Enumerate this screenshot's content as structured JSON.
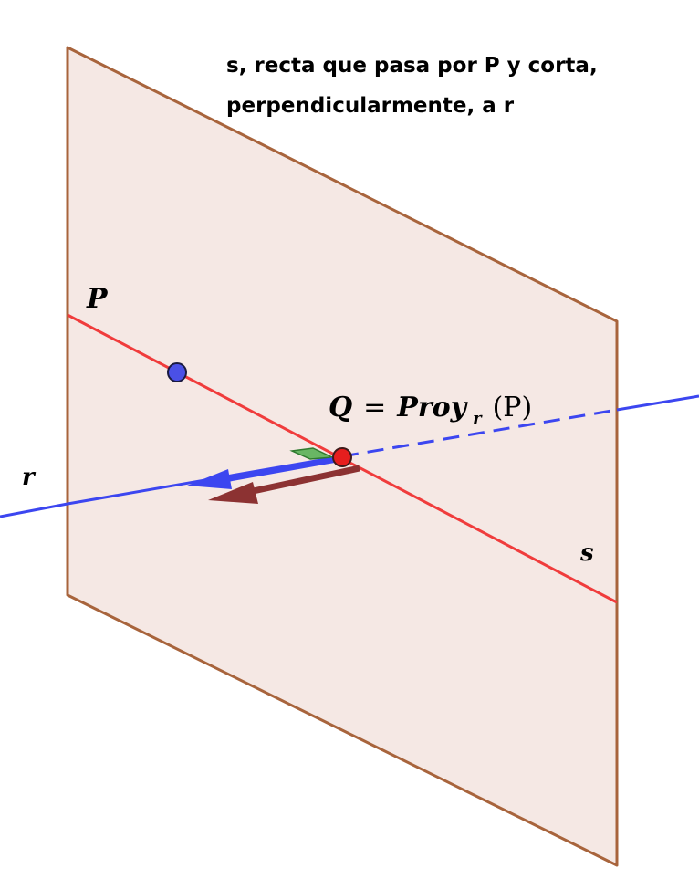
{
  "title": {
    "line1": "s, recta que pasa por P y corta,",
    "line2": "perpendicularmente, a r"
  },
  "labels": {
    "P": "P",
    "r": "r",
    "s": "s",
    "Q_name": "Q",
    "equals": "=",
    "proj_name": "Proy",
    "proj_subscript": "r",
    "proj_argument": "(P)"
  },
  "colors": {
    "plane_fill": "#f5e8e4",
    "plane_edge": "#a8643c",
    "line_r": "#3c46f0",
    "line_s": "#f03c3c",
    "point_P": "#4a50e6",
    "point_Q": "#e61e1e",
    "vector_r": "#3c46f0",
    "vector_s": "#8c3232",
    "right_angle": "#2e8a2e"
  }
}
